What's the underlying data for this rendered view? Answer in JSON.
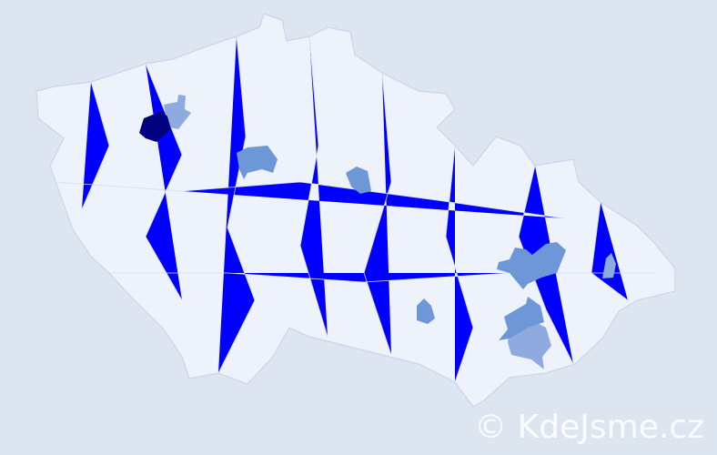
{
  "map": {
    "colors": {
      "background": "#dde5f1",
      "land": "#eef2fa",
      "border": "#c9d5ea",
      "level_highest": "#000080",
      "level_high": "#0000ff",
      "level_medium": "#6e97d8",
      "level_low": "#8eaadf"
    },
    "highlighted_regions": [
      {
        "level": "level_high"
      },
      {
        "level": "level_low"
      },
      {
        "level": "level_highest"
      },
      {
        "level": "level_medium"
      },
      {
        "level": "level_medium"
      },
      {
        "level": "level_medium"
      },
      {
        "level": "level_low"
      },
      {
        "level": "level_medium"
      },
      {
        "level": "level_low"
      }
    ]
  },
  "watermark": "© KdeJsme.cz"
}
